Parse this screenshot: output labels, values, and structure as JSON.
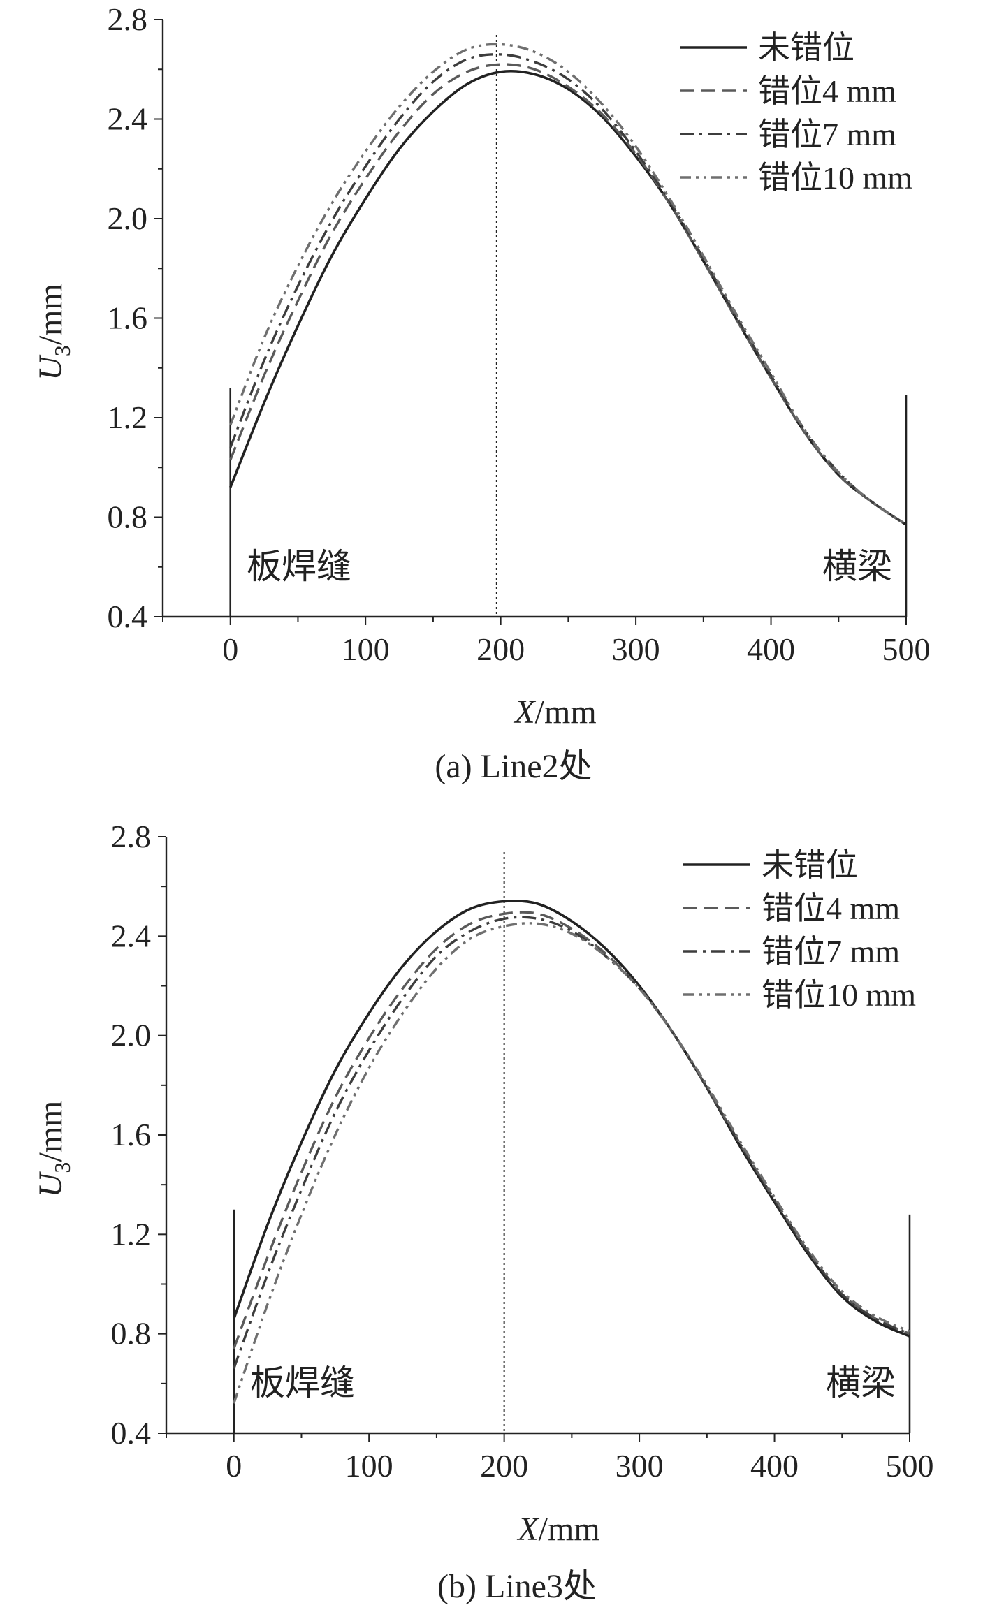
{
  "chart_data": [
    {
      "type": "line",
      "caption": "(a) Line2处",
      "xlabel_var": "X",
      "xlabel_unit": "/mm",
      "ylabel_var": "U",
      "ylabel_sub": "3",
      "ylabel_unit": "/mm",
      "xlim": [
        -50,
        500
      ],
      "ylim": [
        0.4,
        2.8
      ],
      "xticks": [
        0,
        100,
        200,
        300,
        400,
        500
      ],
      "yticks": [
        0.4,
        0.8,
        1.2,
        1.6,
        2.0,
        2.4,
        2.8
      ],
      "xtick_labels": [
        "0",
        "100",
        "200",
        "300",
        "400",
        "500"
      ],
      "ytick_labels": [
        "0.4",
        "0.8",
        "1.2",
        "1.6",
        "2.0",
        "2.4",
        "2.8"
      ],
      "legend_position": "top-right",
      "annotations": {
        "left": "板焊缝",
        "right": "横梁"
      },
      "vertical_marker_x": 197,
      "boundary_lines": [
        {
          "x": 0,
          "y_top": 1.32
        },
        {
          "x": 500,
          "y_top": 1.29
        }
      ],
      "series": [
        {
          "name": "未错位",
          "dash": "",
          "color": "#222222",
          "width": 3.6,
          "x": [
            0,
            25,
            50,
            75,
            100,
            125,
            150,
            175,
            200,
            225,
            250,
            275,
            300,
            325,
            350,
            375,
            400,
            425,
            450,
            475,
            500
          ],
          "y": [
            0.92,
            1.26,
            1.57,
            1.85,
            2.08,
            2.28,
            2.43,
            2.54,
            2.59,
            2.58,
            2.52,
            2.41,
            2.25,
            2.06,
            1.83,
            1.59,
            1.36,
            1.14,
            0.97,
            0.86,
            0.77
          ]
        },
        {
          "name": "错位4 mm",
          "dash": "20,10",
          "color": "#5a5a5a",
          "width": 3.4,
          "x": [
            0,
            25,
            50,
            75,
            100,
            125,
            150,
            175,
            200,
            225,
            250,
            275,
            300,
            325,
            350,
            375,
            400,
            425,
            450,
            475,
            500
          ],
          "y": [
            1.03,
            1.37,
            1.67,
            1.94,
            2.16,
            2.35,
            2.5,
            2.59,
            2.62,
            2.6,
            2.53,
            2.42,
            2.26,
            2.06,
            1.83,
            1.59,
            1.36,
            1.14,
            0.97,
            0.86,
            0.77
          ]
        },
        {
          "name": "错位7 mm",
          "dash": "20,8,4,8",
          "color": "#3d3d3d",
          "width": 3.4,
          "x": [
            0,
            25,
            50,
            75,
            100,
            125,
            150,
            175,
            200,
            225,
            250,
            275,
            300,
            325,
            350,
            375,
            400,
            425,
            450,
            475,
            500
          ],
          "y": [
            1.08,
            1.43,
            1.73,
            1.99,
            2.21,
            2.4,
            2.55,
            2.64,
            2.66,
            2.63,
            2.56,
            2.44,
            2.27,
            2.07,
            1.84,
            1.6,
            1.37,
            1.15,
            0.98,
            0.86,
            0.77
          ]
        },
        {
          "name": "错位10 mm",
          "dash": "16,7,4,7,4,7",
          "color": "#6f6f6f",
          "width": 3.4,
          "x": [
            0,
            25,
            50,
            75,
            100,
            125,
            150,
            175,
            200,
            225,
            250,
            275,
            300,
            325,
            350,
            375,
            400,
            425,
            450,
            475,
            500
          ],
          "y": [
            1.17,
            1.52,
            1.81,
            2.06,
            2.27,
            2.45,
            2.59,
            2.68,
            2.7,
            2.67,
            2.59,
            2.46,
            2.29,
            2.08,
            1.85,
            1.61,
            1.38,
            1.15,
            0.98,
            0.86,
            0.77
          ]
        }
      ]
    },
    {
      "type": "line",
      "caption": "(b) Line3处",
      "xlabel_var": "X",
      "xlabel_unit": "/mm",
      "ylabel_var": "U",
      "ylabel_sub": "3",
      "ylabel_unit": "/mm",
      "xlim": [
        -50,
        500
      ],
      "ylim": [
        0.4,
        2.8
      ],
      "xticks": [
        0,
        100,
        200,
        300,
        400,
        500
      ],
      "yticks": [
        0.4,
        0.8,
        1.2,
        1.6,
        2.0,
        2.4,
        2.8
      ],
      "xtick_labels": [
        "0",
        "100",
        "200",
        "300",
        "400",
        "500"
      ],
      "ytick_labels": [
        "0.4",
        "0.8",
        "1.2",
        "1.6",
        "2.0",
        "2.4",
        "2.8"
      ],
      "legend_position": "top-right",
      "annotations": {
        "left": "板焊缝",
        "right": "横梁"
      },
      "vertical_marker_x": 200,
      "boundary_lines": [
        {
          "x": 0,
          "y_top": 1.3
        },
        {
          "x": 500,
          "y_top": 1.28
        }
      ],
      "series": [
        {
          "name": "未错位",
          "dash": "",
          "color": "#222222",
          "width": 3.6,
          "x": [
            0,
            25,
            50,
            75,
            100,
            125,
            150,
            175,
            200,
            225,
            250,
            275,
            300,
            325,
            350,
            375,
            400,
            425,
            450,
            475,
            500
          ],
          "y": [
            0.86,
            1.24,
            1.57,
            1.86,
            2.09,
            2.28,
            2.42,
            2.51,
            2.54,
            2.53,
            2.46,
            2.35,
            2.2,
            2.01,
            1.79,
            1.55,
            1.33,
            1.12,
            0.95,
            0.85,
            0.79
          ]
        },
        {
          "name": "错位4 mm",
          "dash": "20,10",
          "color": "#5a5a5a",
          "width": 3.4,
          "x": [
            0,
            25,
            50,
            75,
            100,
            125,
            150,
            175,
            200,
            225,
            250,
            275,
            300,
            325,
            350,
            375,
            400,
            425,
            450,
            475,
            500
          ],
          "y": [
            0.74,
            1.11,
            1.45,
            1.75,
            1.99,
            2.19,
            2.35,
            2.45,
            2.49,
            2.49,
            2.43,
            2.33,
            2.19,
            2.01,
            1.79,
            1.56,
            1.34,
            1.13,
            0.96,
            0.86,
            0.8
          ]
        },
        {
          "name": "错位7 mm",
          "dash": "20,8,4,8",
          "color": "#3d3d3d",
          "width": 3.4,
          "x": [
            0,
            25,
            50,
            75,
            100,
            125,
            150,
            175,
            200,
            225,
            250,
            275,
            300,
            325,
            350,
            375,
            400,
            425,
            450,
            475,
            500
          ],
          "y": [
            0.66,
            1.04,
            1.38,
            1.69,
            1.94,
            2.15,
            2.32,
            2.42,
            2.47,
            2.47,
            2.42,
            2.32,
            2.19,
            2.01,
            1.79,
            1.56,
            1.34,
            1.13,
            0.96,
            0.86,
            0.8
          ]
        },
        {
          "name": "错位10 mm",
          "dash": "16,7,4,7,4,7",
          "color": "#6f6f6f",
          "width": 3.4,
          "x": [
            0,
            25,
            50,
            75,
            100,
            125,
            150,
            175,
            200,
            225,
            250,
            275,
            300,
            325,
            350,
            375,
            400,
            425,
            450,
            475,
            500
          ],
          "y": [
            0.52,
            0.92,
            1.28,
            1.6,
            1.87,
            2.09,
            2.27,
            2.39,
            2.44,
            2.45,
            2.41,
            2.32,
            2.19,
            2.01,
            1.8,
            1.57,
            1.35,
            1.14,
            0.97,
            0.87,
            0.81
          ]
        }
      ]
    }
  ]
}
